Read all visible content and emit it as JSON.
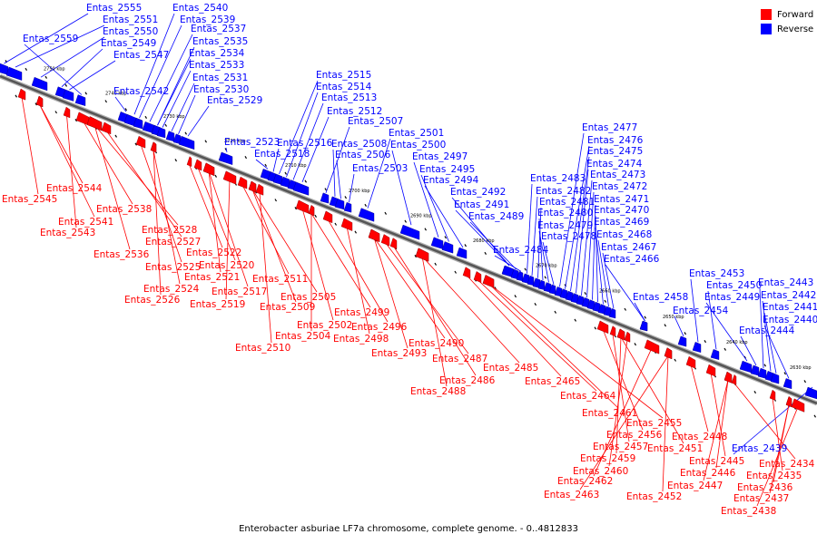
{
  "caption": "Enterobacter asburiae LF7a chromosome, complete genome. - 0..4812833",
  "legend": {
    "forward_label": "Forward",
    "reverse_label": "Reverse",
    "forward_color": "#ff0000",
    "reverse_color": "#0000ff"
  },
  "ticks": [
    "2750 kbp",
    "2740 kbp",
    "2730 kbp",
    "2720 kbp",
    "2710 kbp",
    "2700 kbp",
    "2690 kbp",
    "2680 kbp",
    "2670 kbp",
    "2660 kbp",
    "2650 kbp",
    "2640 kbp",
    "2630 kbp"
  ],
  "forward_labels": [
    "Entas_2545",
    "Entas_2544",
    "Entas_2541",
    "Entas_2543",
    "Entas_2538",
    "Entas_2536",
    "Entas_2528",
    "Entas_2527",
    "Entas_2525",
    "Entas_2524",
    "Entas_2526",
    "Entas_2522",
    "Entas_2520",
    "Entas_2521",
    "Entas_2517",
    "Entas_2519",
    "Entas_2511",
    "Entas_2505",
    "Entas_2509",
    "Entas_2510",
    "Entas_2502",
    "Entas_2504",
    "Entas_2499",
    "Entas_2496",
    "Entas_2498",
    "Entas_2493",
    "Entas_2490",
    "Entas_2487",
    "Entas_2486",
    "Entas_2488",
    "Entas_2485",
    "Entas_2465",
    "Entas_2464",
    "Entas_2461",
    "Entas_2455",
    "Entas_2456",
    "Entas_2457",
    "Entas_2459",
    "Entas_2451",
    "Entas_2460",
    "Entas_2462",
    "Entas_2463",
    "Entas_2452",
    "Entas_2448",
    "Entas_2445",
    "Entas_2446",
    "Entas_2447",
    "Entas_2434",
    "Entas_2435",
    "Entas_2436",
    "Entas_2437",
    "Entas_2438"
  ],
  "reverse_labels": [
    "Entas_2555",
    "Entas_2551",
    "Entas_2550",
    "Entas_2549",
    "Entas_2547",
    "Entas_2559",
    "Entas_2542",
    "Entas_2540",
    "Entas_2539",
    "Entas_2537",
    "Entas_2535",
    "Entas_2534",
    "Entas_2533",
    "Entas_2531",
    "Entas_2530",
    "Entas_2529",
    "Entas_2523",
    "Entas_2518",
    "Entas_2516",
    "Entas_2515",
    "Entas_2514",
    "Entas_2513",
    "Entas_2512",
    "Entas_2507",
    "Entas_2508",
    "Entas_2506",
    "Entas_2503",
    "Entas_2501",
    "Entas_2500",
    "Entas_2497",
    "Entas_2495",
    "Entas_2494",
    "Entas_2492",
    "Entas_2491",
    "Entas_2489",
    "Entas_2484",
    "Entas_2483",
    "Entas_2482",
    "Entas_2481",
    "Entas_2480",
    "Entas_2479",
    "Entas_2478",
    "Entas_2477",
    "Entas_2476",
    "Entas_2475",
    "Entas_2474",
    "Entas_2473",
    "Entas_2472",
    "Entas_2471",
    "Entas_2470",
    "Entas_2469",
    "Entas_2468",
    "Entas_2467",
    "Entas_2466",
    "Entas_2458",
    "Entas_2454",
    "Entas_2453",
    "Entas_2450",
    "Entas_2449",
    "Entas_2444",
    "Entas_2443",
    "Entas_2442",
    "Entas_2441",
    "Entas_2440",
    "Entas_2439"
  ]
}
